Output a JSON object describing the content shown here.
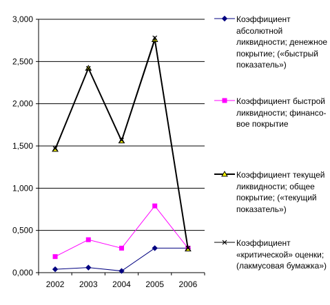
{
  "chart_data": {
    "type": "line",
    "categories": [
      "2002",
      "2003",
      "2004",
      "2005",
      "2006"
    ],
    "ylim": [
      0,
      3
    ],
    "yticks": [
      "0,000",
      "0,500",
      "1,000",
      "1,500",
      "2,000",
      "2,500",
      "3,000"
    ],
    "grid": true,
    "legend_placement": "right",
    "series": [
      {
        "name": "Коэффициент абсолютной ликвидности; денежное покрытие; («быстрый показатель»)",
        "values": [
          0.04,
          0.06,
          0.02,
          0.29,
          0.29
        ],
        "color": "#000080",
        "marker": "diamond"
      },
      {
        "name": "Коэффициент быстрой ликвидности; финансо-вое покрытие",
        "values": [
          0.19,
          0.39,
          0.29,
          0.79,
          0.29
        ],
        "color": "#ff00ff",
        "marker": "square"
      },
      {
        "name": "Коэффициент текущей ликвидности; общее покрытие; («текущий показатель»)",
        "values": [
          1.46,
          2.42,
          1.56,
          2.76,
          0.28
        ],
        "color": "#000000",
        "marker": "triangle"
      },
      {
        "name": "Коэффициент «критической» оценки; (лакмусовая бумажка»)",
        "values": [
          1.47,
          2.42,
          1.57,
          2.78,
          0.29
        ],
        "color": "#000000",
        "marker": "x"
      }
    ]
  }
}
